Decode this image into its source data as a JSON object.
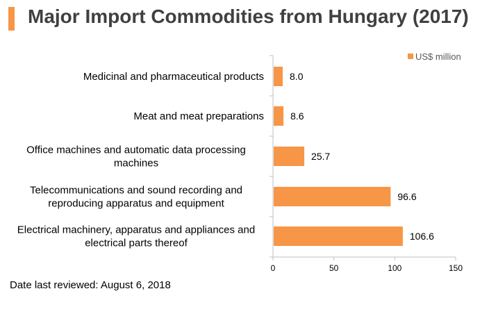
{
  "title": "Major Import Commodities from Hungary (2017)",
  "footnote": "Date last reviewed: August 6, 2018",
  "colors": {
    "accent": "#f79646",
    "bar": "#f79646",
    "axis": "#bfbfbf",
    "title_text": "#404040"
  },
  "chart_data": {
    "type": "bar",
    "orientation": "horizontal",
    "categories": [
      [
        "Medicinal and pharmaceutical products"
      ],
      [
        "Meat and meat preparations"
      ],
      [
        "Office machines and automatic data processing",
        "machines"
      ],
      [
        "Telecommunications and sound recording and",
        "reproducing apparatus and equipment"
      ],
      [
        "Electrical machinery, apparatus and appliances and",
        "electrical parts thereof"
      ]
    ],
    "series": [
      {
        "name": "US$ million",
        "values": [
          8.0,
          8.6,
          25.7,
          96.6,
          106.6
        ],
        "labels": [
          "8.0",
          "8.6",
          "25.7",
          "96.6",
          "106.6"
        ]
      }
    ],
    "xlim": [
      0,
      150
    ],
    "xticks": [
      0,
      50,
      100,
      150
    ],
    "legend_position": "top-right",
    "grid": false
  }
}
